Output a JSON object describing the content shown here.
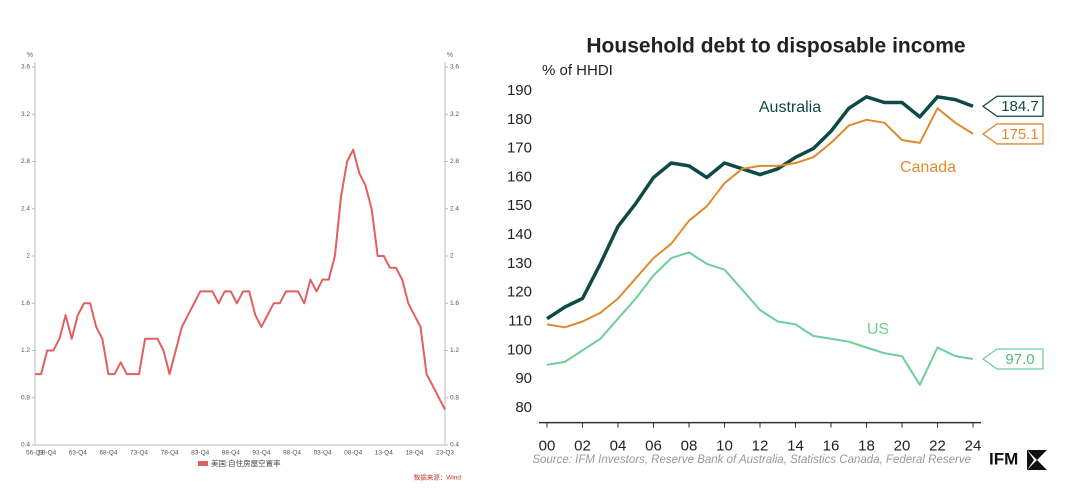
{
  "chart_data": [
    {
      "type": "line",
      "y_label": "%",
      "categories": [
        "56-Q1",
        null,
        "58-Q4",
        null,
        null,
        null,
        null,
        "63-Q4",
        null,
        null,
        null,
        null,
        "68-Q4",
        null,
        null,
        null,
        null,
        "73-Q4",
        null,
        null,
        null,
        null,
        "78-Q4",
        null,
        null,
        null,
        null,
        "83-Q4",
        null,
        null,
        null,
        null,
        "88-Q4",
        null,
        null,
        null,
        null,
        "93-Q4",
        null,
        null,
        null,
        null,
        "98-Q4",
        null,
        null,
        null,
        null,
        "03-Q4",
        null,
        null,
        null,
        null,
        "08-Q4",
        null,
        null,
        null,
        null,
        "13-Q4",
        null,
        null,
        null,
        null,
        "18-Q4",
        null,
        null,
        null,
        null,
        "23-Q3"
      ],
      "series": [
        {
          "name": "美国:自住房屋空置率",
          "color": "#e06060",
          "values": [
            1.0,
            1.0,
            1.2,
            1.2,
            1.3,
            1.5,
            1.3,
            1.5,
            1.6,
            1.6,
            1.4,
            1.3,
            1.0,
            1.0,
            1.1,
            1.0,
            1.0,
            1.0,
            1.3,
            1.3,
            1.3,
            1.2,
            1.0,
            1.2,
            1.4,
            1.5,
            1.6,
            1.7,
            1.7,
            1.7,
            1.6,
            1.7,
            1.7,
            1.6,
            1.7,
            1.7,
            1.5,
            1.4,
            1.5,
            1.6,
            1.6,
            1.7,
            1.7,
            1.7,
            1.6,
            1.8,
            1.7,
            1.8,
            1.8,
            2.0,
            2.5,
            2.8,
            2.9,
            2.7,
            2.6,
            2.4,
            2.0,
            2.0,
            1.9,
            1.9,
            1.8,
            1.6,
            1.5,
            1.4,
            1.0,
            0.9,
            0.8,
            0.7
          ]
        }
      ],
      "ylim": [
        0.4,
        3.6
      ],
      "yticks": [
        0.4,
        0.8,
        1.2,
        1.6,
        2,
        2.4,
        2.8,
        3.2,
        3.6
      ],
      "source": "数据来源：Wind"
    },
    {
      "type": "line",
      "title": "Household debt to disposable income",
      "y_label": "% of HHDI",
      "x": [
        2000,
        2001,
        2002,
        2003,
        2004,
        2005,
        2006,
        2007,
        2008,
        2009,
        2010,
        2011,
        2012,
        2013,
        2014,
        2015,
        2016,
        2017,
        2018,
        2019,
        2020,
        2021,
        2022,
        2023,
        2024
      ],
      "series": [
        {
          "name": "Australia",
          "color": "#0e4a44",
          "values": [
            111,
            115,
            118,
            130,
            143,
            151,
            160,
            165,
            164,
            160,
            165,
            163,
            161,
            163,
            167,
            170,
            176,
            184,
            188,
            186,
            186,
            181,
            188,
            187,
            184.7
          ],
          "value_labels": [
            null,
            null,
            null,
            null,
            null,
            null,
            null,
            null,
            null,
            null,
            null,
            null,
            null,
            null,
            null,
            null,
            null,
            null,
            null,
            null,
            null,
            null,
            null,
            null,
            "184.7"
          ]
        },
        {
          "name": "Canada",
          "color": "#e08a2c",
          "values": [
            109,
            108,
            110,
            113,
            118,
            125,
            132,
            137,
            145,
            150,
            158,
            163,
            164,
            164,
            165,
            167,
            172,
            178,
            180,
            179,
            173,
            172,
            184,
            179,
            175.1
          ],
          "value_labels": [
            null,
            null,
            null,
            null,
            null,
            null,
            null,
            null,
            null,
            null,
            null,
            null,
            null,
            null,
            null,
            null,
            null,
            null,
            null,
            null,
            null,
            null,
            null,
            null,
            "175.1"
          ]
        },
        {
          "name": "US",
          "color": "#6ccf9c",
          "values": [
            95,
            96,
            100,
            104,
            111,
            118,
            126,
            132,
            134,
            130,
            128,
            121,
            114,
            110,
            109,
            105,
            104,
            103,
            101,
            99,
            98,
            88,
            101,
            98,
            97
          ],
          "value_labels": [
            null,
            null,
            null,
            null,
            null,
            null,
            null,
            null,
            null,
            null,
            null,
            null,
            null,
            null,
            null,
            null,
            null,
            null,
            null,
            null,
            null,
            null,
            null,
            null,
            "97.0"
          ]
        }
      ],
      "xlim": [
        2000,
        2024
      ],
      "xticks": [
        {
          "value": 2000,
          "label": "00"
        },
        {
          "value": 2002,
          "label": "02"
        },
        {
          "value": 2004,
          "label": "04"
        },
        {
          "value": 2006,
          "label": "06"
        },
        {
          "value": 2008,
          "label": "08"
        },
        {
          "value": 2010,
          "label": "10"
        },
        {
          "value": 2012,
          "label": "12"
        },
        {
          "value": 2014,
          "label": "14"
        },
        {
          "value": 2016,
          "label": "16"
        },
        {
          "value": 2018,
          "label": "18"
        },
        {
          "value": 2020,
          "label": "20"
        },
        {
          "value": 2022,
          "label": "22"
        },
        {
          "value": 2024,
          "label": "24"
        }
      ],
      "ylim": [
        77,
        192
      ],
      "yticks": [
        80,
        90,
        100,
        110,
        120,
        130,
        140,
        150,
        160,
        170,
        180,
        190
      ],
      "source": "Source: IFM Investors, Reserve Bank of Australia, Statistics Canada, Federal Reserve",
      "logo": "IFM"
    }
  ]
}
